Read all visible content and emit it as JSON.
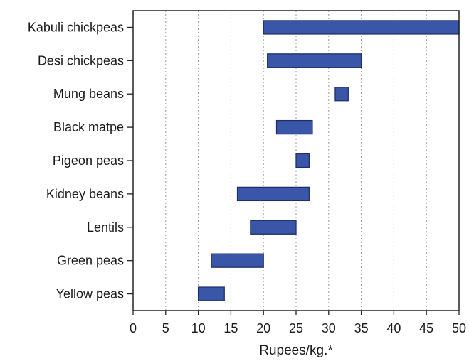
{
  "chart_data": {
    "type": "bar",
    "orientation": "horizontal-range",
    "categories": [
      "Kabuli chickpeas",
      "Desi chickpeas",
      "Mung beans",
      "Black matpe",
      "Pigeon peas",
      "Kidney beans",
      "Lentils",
      "Green peas",
      "Yellow peas"
    ],
    "ranges": [
      [
        20,
        50
      ],
      [
        20.6,
        35
      ],
      [
        31,
        33
      ],
      [
        22,
        27.5
      ],
      [
        25,
        27
      ],
      [
        16,
        27
      ],
      [
        18,
        25
      ],
      [
        12,
        20
      ],
      [
        10,
        14
      ]
    ],
    "xlabel": "Rupees/kg.*",
    "ylabel": "",
    "title": "",
    "xlim": [
      0,
      50
    ],
    "xticks": [
      0,
      5,
      10,
      15,
      20,
      25,
      30,
      35,
      40,
      45,
      50
    ],
    "grid": "vertical dotted",
    "legend": "none",
    "colors": {
      "bar_fill": "#3a56a8",
      "bar_stroke": "#1f2f6b",
      "grid": "#9a9a9a",
      "axis": "#222222"
    }
  }
}
